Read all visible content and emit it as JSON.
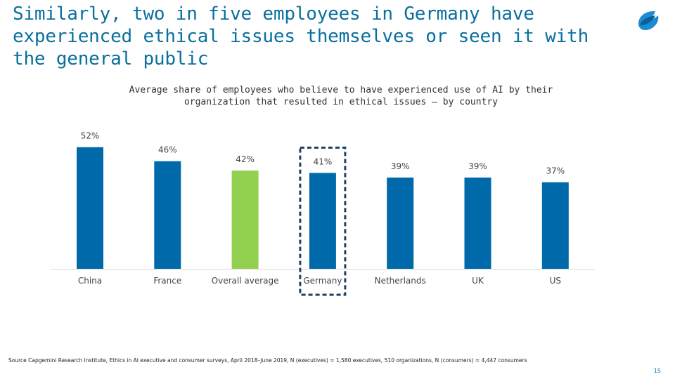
{
  "slide": {
    "headline": "Similarly, two in five employees in Germany have experienced ethical issues themselves or seen it with the general public",
    "source": "Source Capgemini Research Institute, Ethics in AI executive and consumer surveys, April 2018–June 2019, N (executives) = 1,580 executives, 510 organizations, N (consumers) = 4,447 consumers",
    "page_number": "15"
  },
  "colors": {
    "bar": "#0069aa",
    "highlight_bar": "#92d050",
    "headline": "#0a6f9e",
    "callout_box": "#1e3f66"
  },
  "chart_data": {
    "type": "bar",
    "title": "Average share of employees who believe to have experienced use of AI by their organization that resulted in ethical issues – by country",
    "categories": [
      "China",
      "France",
      "Overall average",
      "Germany",
      "Netherlands",
      "UK",
      "US"
    ],
    "values": [
      52,
      46,
      42,
      41,
      39,
      39,
      37
    ],
    "value_labels": [
      "52%",
      "46%",
      "42%",
      "41%",
      "39%",
      "39%",
      "37%"
    ],
    "unit": "%",
    "ylim": [
      0,
      60
    ],
    "highlight_category": "Overall average",
    "boxed_category": "Germany",
    "grid": false,
    "legend": "none"
  }
}
